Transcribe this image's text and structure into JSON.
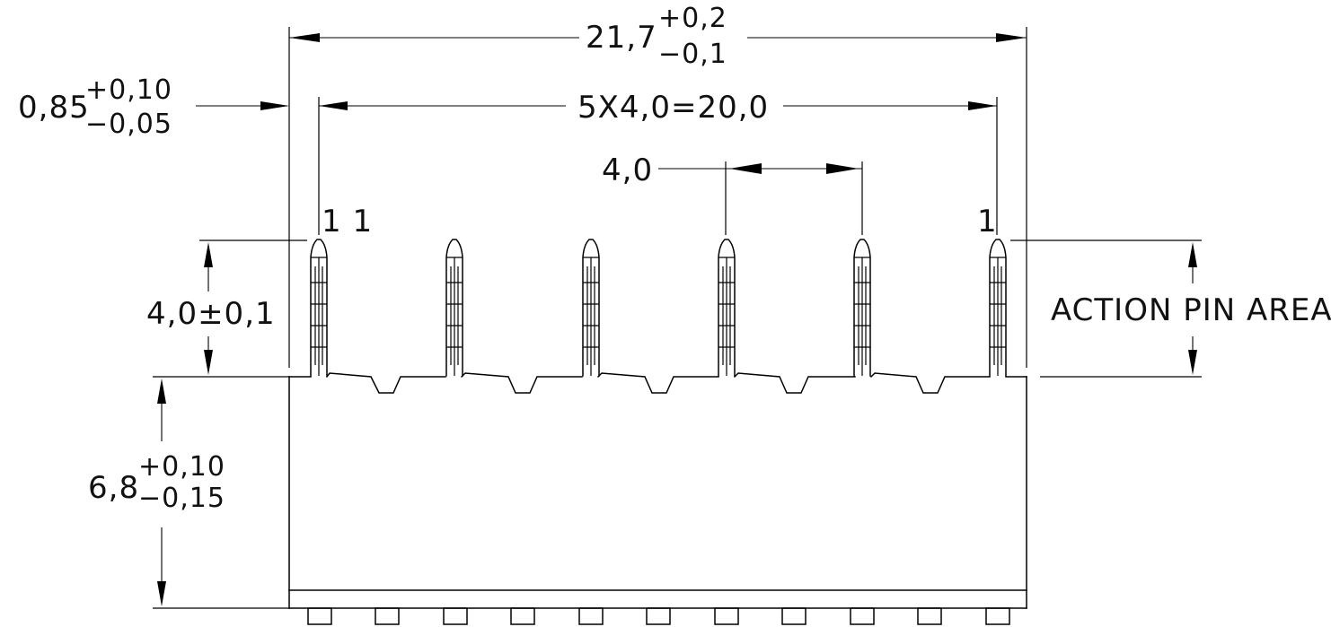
{
  "dimensions": {
    "overall_width": {
      "base": "21,7",
      "upper": "+0,2",
      "lower": "−0,1"
    },
    "pin_offset": {
      "base": "0,85",
      "upper": "+0,10",
      "lower": "−0,05"
    },
    "pin_span": {
      "label": "5X4,0=20,0"
    },
    "pitch": {
      "label": "4,0"
    },
    "pin_height": {
      "label": "4,0±0,1"
    },
    "body_height": {
      "base": "6,8",
      "upper": "+0,10",
      "lower": "−0,15"
    }
  },
  "annotations": {
    "pin_marks_left": "1 1",
    "pin_marks_right": "1",
    "action_area": "ACTION  PIN  AREA"
  },
  "colors": {
    "line": "#000000",
    "background": "#ffffff"
  }
}
